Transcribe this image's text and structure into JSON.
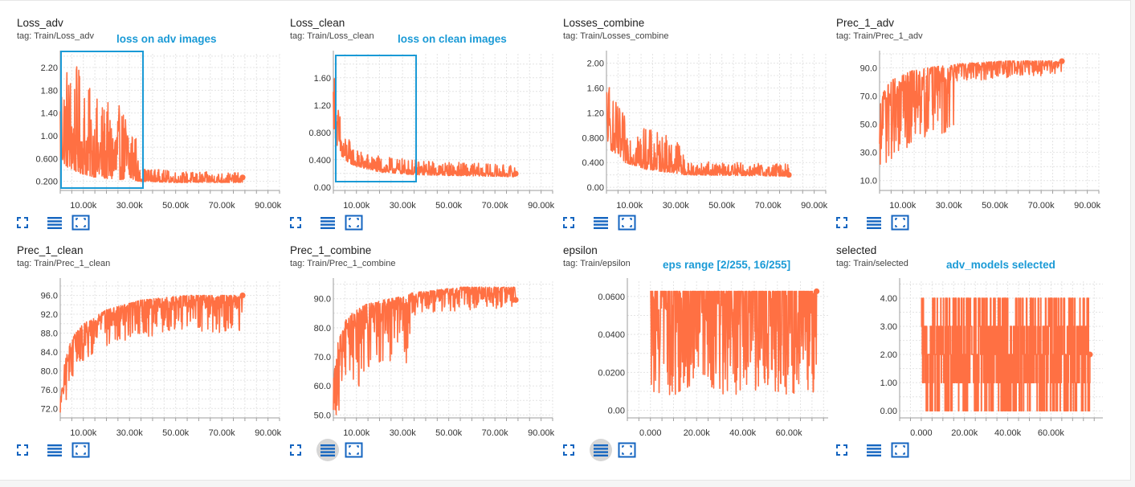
{
  "cards": [
    {
      "title": "Loss_adv",
      "tag": "tag: Train/Loss_adv",
      "note": "loss on adv images",
      "chart_data": {
        "type": "line",
        "title": "Loss_adv",
        "x_range": [
          0,
          95000
        ],
        "ylim": [
          0.04,
          2.44
        ],
        "grid": true,
        "y_ticks": [
          0.2,
          0.6,
          1.0,
          1.4,
          1.8,
          2.2
        ],
        "y_tick_labels": [
          "0.200",
          "0.600",
          "1.00",
          "1.40",
          "1.80",
          "2.20"
        ],
        "x_ticks": [
          10000,
          30000,
          50000,
          70000,
          90000
        ],
        "x_tick_labels": [
          "10.00k",
          "30.00k",
          "50.00k",
          "70.00k",
          "90.00k"
        ],
        "series": [
          {
            "color": "#ff7043",
            "x_end": 79000,
            "envelope": [
              {
                "x": 0,
                "lo": 0.6,
                "hi": 2.4
              },
              {
                "x": 3000,
                "lo": 0.45,
                "hi": 2.4
              },
              {
                "x": 8000,
                "lo": 0.35,
                "hi": 2.2
              },
              {
                "x": 14000,
                "lo": 0.28,
                "hi": 1.75
              },
              {
                "x": 22000,
                "lo": 0.24,
                "hi": 1.55
              },
              {
                "x": 32000,
                "lo": 0.22,
                "hi": 1.5
              },
              {
                "x": 34000,
                "lo": 0.2,
                "hi": 0.45
              },
              {
                "x": 50000,
                "lo": 0.18,
                "hi": 0.38
              },
              {
                "x": 79000,
                "lo": 0.18,
                "hi": 0.35
              }
            ]
          }
        ]
      }
    },
    {
      "title": "Loss_clean",
      "tag": "tag: Train/Loss_clean",
      "note": "loss on clean images",
      "chart_data": {
        "type": "line",
        "title": "Loss_clean",
        "x_range": [
          0,
          95000
        ],
        "ylim": [
          -0.05,
          1.95
        ],
        "grid": true,
        "y_ticks": [
          0,
          0.4,
          0.8,
          1.2,
          1.6
        ],
        "y_tick_labels": [
          "0.00",
          "0.400",
          "0.800",
          "1.20",
          "1.60"
        ],
        "x_ticks": [
          10000,
          30000,
          50000,
          70000,
          90000
        ],
        "x_tick_labels": [
          "10.00k",
          "30.00k",
          "50.00k",
          "70.00k",
          "90.00k"
        ],
        "series": [
          {
            "color": "#ff7043",
            "x_end": 79000,
            "envelope": [
              {
                "x": 0,
                "lo": 0.9,
                "hi": 1.85
              },
              {
                "x": 1500,
                "lo": 0.6,
                "hi": 1.4
              },
              {
                "x": 4000,
                "lo": 0.4,
                "hi": 0.85
              },
              {
                "x": 10000,
                "lo": 0.3,
                "hi": 0.55
              },
              {
                "x": 20000,
                "lo": 0.22,
                "hi": 0.45
              },
              {
                "x": 35000,
                "lo": 0.18,
                "hi": 0.4
              },
              {
                "x": 79000,
                "lo": 0.15,
                "hi": 0.32
              }
            ]
          }
        ]
      }
    },
    {
      "title": "Losses_combine",
      "tag": "tag: Train/Losses_combine",
      "note": "",
      "chart_data": {
        "type": "line",
        "title": "Losses_combine",
        "x_range": [
          0,
          95000
        ],
        "ylim": [
          -0.05,
          2.15
        ],
        "grid": true,
        "y_ticks": [
          0,
          0.4,
          0.8,
          1.2,
          1.6,
          2.0
        ],
        "y_tick_labels": [
          "0.00",
          "0.400",
          "0.800",
          "1.20",
          "1.60",
          "2.00"
        ],
        "x_ticks": [
          10000,
          30000,
          50000,
          70000,
          90000
        ],
        "x_tick_labels": [
          "10.00k",
          "30.00k",
          "50.00k",
          "70.00k",
          "90.00k"
        ],
        "series": [
          {
            "color": "#ff7043",
            "x_end": 79000,
            "envelope": [
              {
                "x": 0,
                "lo": 0.8,
                "hi": 2.05
              },
              {
                "x": 2000,
                "lo": 0.6,
                "hi": 1.5
              },
              {
                "x": 8000,
                "lo": 0.4,
                "hi": 1.15
              },
              {
                "x": 18000,
                "lo": 0.28,
                "hi": 0.95
              },
              {
                "x": 32000,
                "lo": 0.22,
                "hi": 0.8
              },
              {
                "x": 34000,
                "lo": 0.2,
                "hi": 0.42
              },
              {
                "x": 79000,
                "lo": 0.18,
                "hi": 0.38
              }
            ]
          }
        ]
      }
    },
    {
      "title": "Prec_1_adv",
      "tag": "tag: Train/Prec_1_adv",
      "note": "",
      "chart_data": {
        "type": "line",
        "title": "Prec_1_adv",
        "x_range": [
          0,
          95000
        ],
        "ylim": [
          3,
          100
        ],
        "grid": true,
        "y_ticks": [
          10,
          30,
          50,
          70,
          90
        ],
        "y_tick_labels": [
          "10.0",
          "30.0",
          "50.0",
          "70.0",
          "90.0"
        ],
        "x_ticks": [
          10000,
          30000,
          50000,
          70000,
          90000
        ],
        "x_tick_labels": [
          "10.00k",
          "30.00k",
          "50.00k",
          "70.00k",
          "90.00k"
        ],
        "series": [
          {
            "color": "#ff7043",
            "x_end": 79000,
            "envelope": [
              {
                "x": 0,
                "lo": 22,
                "hi": 62
              },
              {
                "x": 2000,
                "lo": 20,
                "hi": 75
              },
              {
                "x": 6000,
                "lo": 25,
                "hi": 82
              },
              {
                "x": 14000,
                "lo": 35,
                "hi": 88
              },
              {
                "x": 24000,
                "lo": 40,
                "hi": 91
              },
              {
                "x": 32000,
                "lo": 45,
                "hi": 92
              },
              {
                "x": 34000,
                "lo": 80,
                "hi": 93
              },
              {
                "x": 55000,
                "lo": 83,
                "hi": 95
              },
              {
                "x": 79000,
                "lo": 85,
                "hi": 95
              }
            ]
          }
        ]
      }
    },
    {
      "title": "Prec_1_clean",
      "tag": "tag: Train/Prec_1_clean",
      "note": "",
      "chart_data": {
        "type": "line",
        "title": "Prec_1_clean",
        "x_range": [
          0,
          95000
        ],
        "ylim": [
          70,
          99
        ],
        "grid": true,
        "y_ticks": [
          72,
          76,
          80,
          84,
          88,
          92,
          96
        ],
        "y_tick_labels": [
          "72.0",
          "76.0",
          "80.0",
          "84.0",
          "88.0",
          "92.0",
          "96.0"
        ],
        "x_ticks": [
          10000,
          30000,
          50000,
          70000,
          90000
        ],
        "x_tick_labels": [
          "10.00k",
          "30.00k",
          "50.00k",
          "70.00k",
          "90.00k"
        ],
        "series": [
          {
            "color": "#ff7043",
            "x_end": 79000,
            "envelope": [
              {
                "x": 0,
                "lo": 70,
                "hi": 74
              },
              {
                "x": 2000,
                "lo": 72,
                "hi": 82
              },
              {
                "x": 5000,
                "lo": 78,
                "hi": 87
              },
              {
                "x": 10000,
                "lo": 82,
                "hi": 90
              },
              {
                "x": 20000,
                "lo": 85,
                "hi": 93
              },
              {
                "x": 35000,
                "lo": 87,
                "hi": 95
              },
              {
                "x": 55000,
                "lo": 88,
                "hi": 96
              },
              {
                "x": 79000,
                "lo": 88,
                "hi": 96
              }
            ]
          }
        ]
      }
    },
    {
      "title": "Prec_1_combine",
      "tag": "tag: Train/Prec_1_combine",
      "note": "",
      "chart_data": {
        "type": "line",
        "title": "Prec_1_combine",
        "x_range": [
          0,
          95000
        ],
        "ylim": [
          49,
          96
        ],
        "grid": true,
        "y_ticks": [
          50,
          60,
          70,
          80,
          90
        ],
        "y_tick_labels": [
          "50.0",
          "60.0",
          "70.0",
          "80.0",
          "90.0"
        ],
        "x_ticks": [
          10000,
          30000,
          50000,
          70000,
          90000
        ],
        "x_tick_labels": [
          "10.00k",
          "30.00k",
          "50.00k",
          "70.00k",
          "90.00k"
        ],
        "series": [
          {
            "color": "#ff7043",
            "x_end": 79000,
            "envelope": [
              {
                "x": 0,
                "lo": 49,
                "hi": 62
              },
              {
                "x": 2000,
                "lo": 50,
                "hi": 75
              },
              {
                "x": 6000,
                "lo": 55,
                "hi": 84
              },
              {
                "x": 14000,
                "lo": 62,
                "hi": 88
              },
              {
                "x": 24000,
                "lo": 66,
                "hi": 90
              },
              {
                "x": 32000,
                "lo": 68,
                "hi": 91
              },
              {
                "x": 34000,
                "lo": 84,
                "hi": 92
              },
              {
                "x": 55000,
                "lo": 86,
                "hi": 94
              },
              {
                "x": 79000,
                "lo": 87,
                "hi": 94
              }
            ]
          }
        ]
      }
    },
    {
      "title": "epsilon",
      "tag": "tag: Train/epsilon",
      "note": "eps range [2/255, 16/255]",
      "chart_data": {
        "type": "line",
        "title": "epsilon",
        "x_range": [
          -10000,
          77000
        ],
        "ylim": [
          -0.004,
          0.068
        ],
        "grid": true,
        "y_ticks": [
          0,
          0.02,
          0.04,
          0.06
        ],
        "y_tick_labels": [
          "0.00",
          "0.0200",
          "0.0400",
          "0.0600"
        ],
        "x_ticks": [
          0,
          20000,
          40000,
          60000
        ],
        "x_tick_labels": [
          "0.000",
          "20.00k",
          "40.00k",
          "60.00k"
        ],
        "series": [
          {
            "color": "#ff7043",
            "x_end": 72000,
            "discrete_high": 0.0627,
            "envelope": [
              {
                "x": 0,
                "lo": 0.0078,
                "hi": 0.0627
              },
              {
                "x": 72000,
                "lo": 0.0078,
                "hi": 0.0627
              }
            ]
          }
        ]
      }
    },
    {
      "title": "selected",
      "tag": "tag: Train/selected",
      "note": "adv_models selected",
      "chart_data": {
        "type": "line",
        "title": "selected",
        "x_range": [
          -10000,
          84000
        ],
        "ylim": [
          -0.25,
          4.6
        ],
        "grid": true,
        "y_ticks": [
          0,
          1,
          2,
          3,
          4
        ],
        "y_tick_labels": [
          "0.00",
          "1.00",
          "2.00",
          "3.00",
          "4.00"
        ],
        "x_ticks": [
          0,
          20000,
          40000,
          60000
        ],
        "x_tick_labels": [
          "0.000",
          "20.00k",
          "40.00k",
          "60.00k"
        ],
        "series": [
          {
            "color": "#ff7043",
            "x_end": 78000,
            "levels": [
              0,
              1,
              2,
              3,
              4
            ],
            "envelope": [
              {
                "x": 0,
                "lo": 0,
                "hi": 4
              },
              {
                "x": 78000,
                "lo": 0,
                "hi": 4
              }
            ]
          }
        ]
      }
    }
  ]
}
